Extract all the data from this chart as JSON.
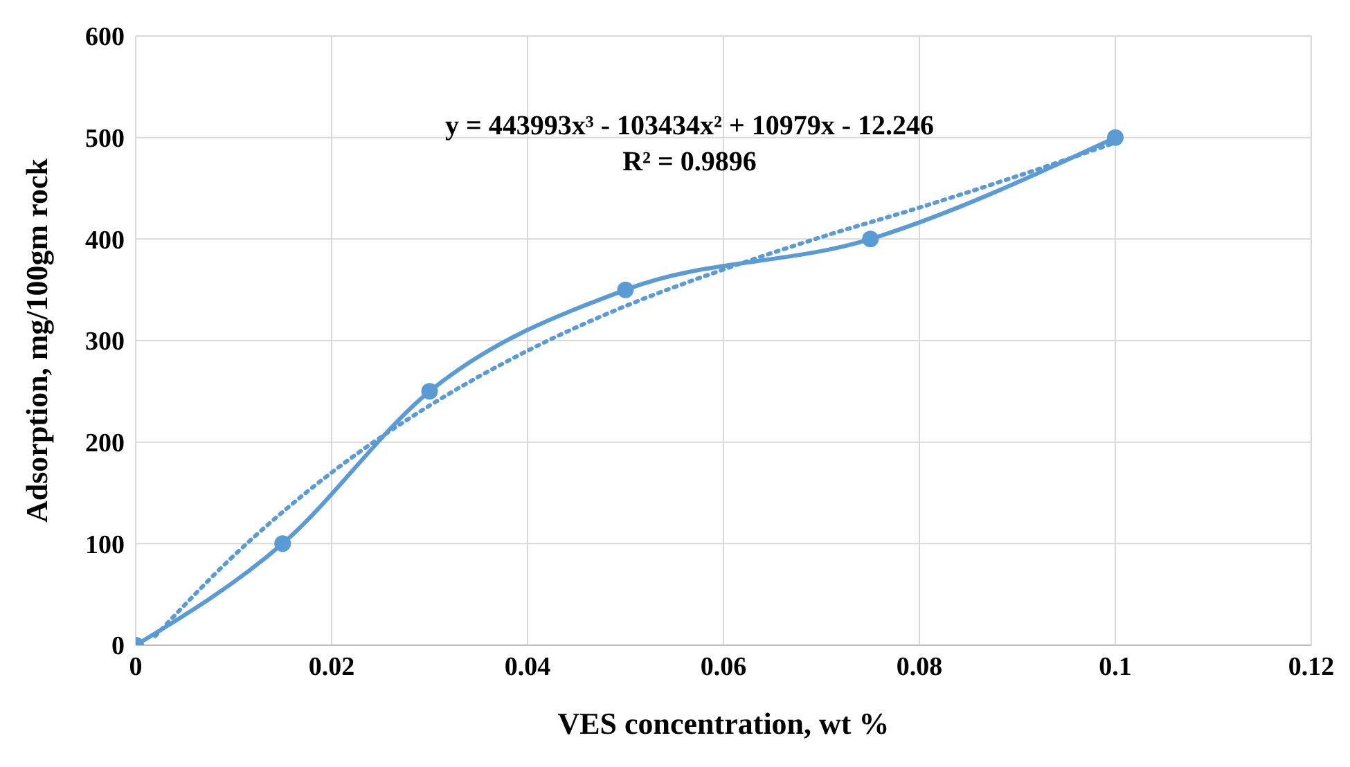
{
  "chart_data": {
    "type": "line",
    "xlabel": "VES concentration, wt %",
    "ylabel": "Adsorption, mg/100gm rock",
    "x": [
      0,
      0.015,
      0.03,
      0.05,
      0.075,
      0.1
    ],
    "series": [
      {
        "color": "#5b9bd5",
        "values": [
          0,
          100,
          250,
          350,
          400,
          500
        ],
        "marker": "circle",
        "line_style": "solid"
      },
      {
        "type": "line",
        "color": "#5b9bd5",
        "x": [
          0.002,
          0.01,
          0.02,
          0.03,
          0.04,
          0.05,
          0.06,
          0.07,
          0.08,
          0.09,
          0.1
        ],
        "values": [
          9,
          88,
          170,
          236,
          290,
          334,
          370,
          402,
          431,
          462,
          495
        ],
        "marker": "none",
        "line_style": "dotted"
      }
    ],
    "xlim": [
      0,
      0.12
    ],
    "xticks": [
      0,
      0.02,
      0.04,
      0.06,
      0.08,
      0.1,
      0.12
    ],
    "ylim": [
      0,
      600
    ],
    "yticks": [
      0,
      100,
      200,
      300,
      400,
      500,
      600
    ],
    "grid": true,
    "annotations": [
      "y = 443993x³ - 103434x² + 10979x - 12.246",
      "R² = 0.9896"
    ]
  }
}
